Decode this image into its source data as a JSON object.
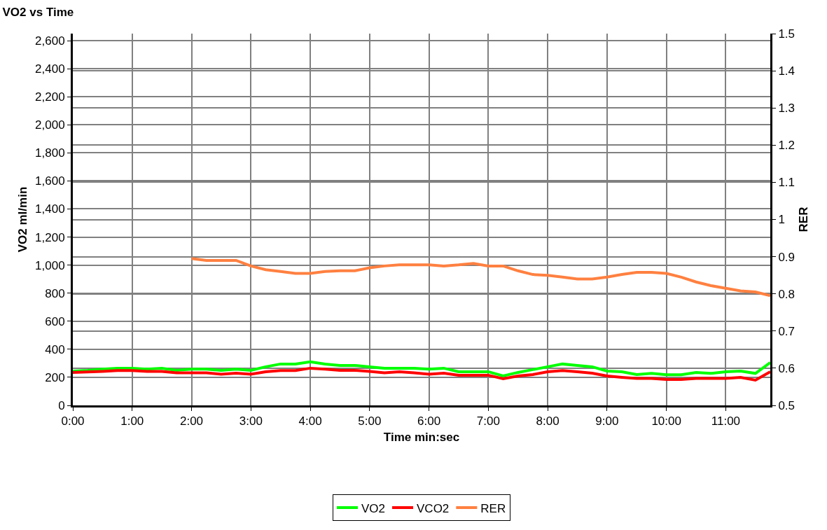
{
  "chart_data": {
    "type": "line",
    "title": "VO2 vs Time",
    "xlabel": "Time min:sec",
    "ylabel": "VO2 ml/min",
    "y2label": "RER",
    "x": [
      0,
      0.25,
      0.5,
      0.75,
      1,
      1.25,
      1.5,
      1.75,
      2,
      2.25,
      2.5,
      2.75,
      3,
      3.25,
      3.5,
      3.75,
      4,
      4.25,
      4.5,
      4.75,
      5,
      5.25,
      5.5,
      5.75,
      6,
      6.25,
      6.5,
      6.75,
      7,
      7.25,
      7.5,
      7.75,
      8,
      8.25,
      8.5,
      8.75,
      9,
      9.25,
      9.5,
      9.75,
      10,
      10.25,
      10.5,
      10.75,
      11,
      11.25,
      11.5,
      11.75
    ],
    "series": [
      {
        "name": "VO2",
        "color": "#00ff00",
        "values": [
          245,
          250,
          258,
          265,
          265,
          258,
          265,
          250,
          258,
          258,
          250,
          258,
          250,
          275,
          295,
          295,
          310,
          295,
          285,
          285,
          275,
          265,
          265,
          265,
          258,
          265,
          240,
          240,
          240,
          210,
          235,
          255,
          275,
          295,
          285,
          275,
          245,
          240,
          220,
          228,
          218,
          218,
          235,
          228,
          240,
          245,
          228,
          305
        ]
      },
      {
        "name": "VCO2",
        "color": "#ff0000",
        "values": [
          235,
          238,
          242,
          248,
          248,
          242,
          242,
          232,
          232,
          232,
          222,
          230,
          222,
          240,
          248,
          248,
          265,
          258,
          250,
          250,
          242,
          232,
          240,
          232,
          222,
          230,
          215,
          215,
          215,
          190,
          210,
          220,
          240,
          248,
          240,
          230,
          210,
          200,
          192,
          192,
          185,
          185,
          192,
          192,
          192,
          200,
          180,
          240
        ]
      },
      {
        "name": "RER",
        "color": "#ff8040",
        "axis": "y2",
        "values": [
          null,
          null,
          null,
          null,
          null,
          null,
          null,
          null,
          0.895,
          0.89,
          0.89,
          0.89,
          0.875,
          0.865,
          0.86,
          0.855,
          0.855,
          0.86,
          0.862,
          0.862,
          0.87,
          0.875,
          0.878,
          0.878,
          0.878,
          0.875,
          0.878,
          0.882,
          0.875,
          0.875,
          0.862,
          0.852,
          0.85,
          0.845,
          0.84,
          0.84,
          0.845,
          0.852,
          0.858,
          0.858,
          0.855,
          0.845,
          0.832,
          0.822,
          0.815,
          0.808,
          0.805,
          0.795
        ]
      }
    ],
    "xlim": [
      0,
      11.75
    ],
    "xticks": [
      {
        "value": 0,
        "label": "0:00"
      },
      {
        "value": 1,
        "label": "1:00"
      },
      {
        "value": 2,
        "label": "2:00"
      },
      {
        "value": 3,
        "label": "3:00"
      },
      {
        "value": 4,
        "label": "4:00"
      },
      {
        "value": 5,
        "label": "5:00"
      },
      {
        "value": 6,
        "label": "6:00"
      },
      {
        "value": 7,
        "label": "7:00"
      },
      {
        "value": 8,
        "label": "8:00"
      },
      {
        "value": 9,
        "label": "9:00"
      },
      {
        "value": 10,
        "label": "10:00"
      },
      {
        "value": 11,
        "label": "11:00"
      }
    ],
    "ylim": [
      0,
      2650
    ],
    "yticks": [
      0,
      200,
      400,
      600,
      800,
      {
        "value": 1000,
        "label": "1,000"
      },
      {
        "value": 1200,
        "label": "1,200"
      },
      {
        "value": 1400,
        "label": "1,400"
      },
      {
        "value": 1600,
        "label": "1,600"
      },
      {
        "value": 1800,
        "label": "1,800"
      },
      {
        "value": 2000,
        "label": "2,000"
      },
      {
        "value": 2200,
        "label": "2,200"
      },
      {
        "value": 2400,
        "label": "2,400"
      },
      {
        "value": 2600,
        "label": "2,600"
      }
    ],
    "y2lim": [
      0.5,
      1.5
    ],
    "y2ticks": [
      0.5,
      0.6,
      0.7,
      0.8,
      0.9,
      {
        "value": 1.0,
        "label": "1"
      },
      1.1,
      1.2,
      1.3,
      1.4,
      1.5
    ],
    "grid": true,
    "legend": "bottom",
    "marker": "none",
    "line_style": "solid"
  }
}
